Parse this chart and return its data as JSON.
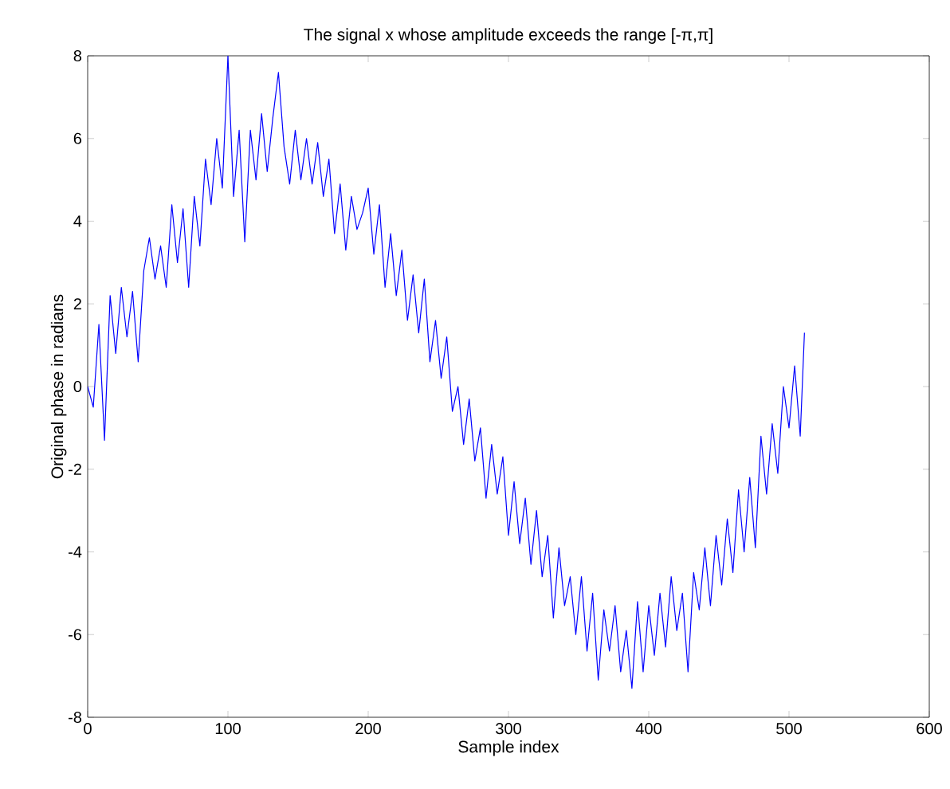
{
  "chart_data": {
    "type": "line",
    "title": "The signal x whose amplitude exceeds the range [-π,π]",
    "xlabel": "Sample index",
    "ylabel": "Original phase in radians",
    "xlim": [
      0,
      600
    ],
    "ylim": [
      -8,
      8
    ],
    "xticks": [
      0,
      100,
      200,
      300,
      400,
      500,
      600
    ],
    "yticks": [
      -8,
      -6,
      -4,
      -2,
      0,
      2,
      4,
      6,
      8
    ],
    "grid": false,
    "marker": "none",
    "line_style": "solid",
    "series": [
      {
        "color": "#0000ff",
        "x": [
          0,
          4,
          8,
          12,
          16,
          20,
          24,
          28,
          32,
          36,
          40,
          44,
          48,
          52,
          56,
          60,
          64,
          68,
          72,
          76,
          80,
          84,
          88,
          92,
          96,
          100,
          104,
          108,
          112,
          116,
          120,
          124,
          128,
          132,
          136,
          140,
          144,
          148,
          152,
          156,
          160,
          164,
          168,
          172,
          176,
          180,
          184,
          188,
          192,
          196,
          200,
          204,
          208,
          212,
          216,
          220,
          224,
          228,
          232,
          236,
          240,
          244,
          248,
          252,
          256,
          260,
          264,
          268,
          272,
          276,
          280,
          284,
          288,
          292,
          296,
          300,
          304,
          308,
          312,
          316,
          320,
          324,
          328,
          332,
          336,
          340,
          344,
          348,
          352,
          356,
          360,
          364,
          368,
          372,
          376,
          380,
          384,
          388,
          392,
          396,
          400,
          404,
          408,
          412,
          416,
          420,
          424,
          428,
          432,
          436,
          440,
          444,
          448,
          452,
          456,
          460,
          464,
          468,
          472,
          476,
          480,
          484,
          488,
          492,
          496,
          500,
          504,
          508,
          511
        ],
        "values": [
          0.0,
          -0.5,
          1.5,
          -1.3,
          2.2,
          0.8,
          2.4,
          1.2,
          2.3,
          0.6,
          2.8,
          3.6,
          2.6,
          3.4,
          2.4,
          4.4,
          3.0,
          4.3,
          2.4,
          4.6,
          3.4,
          5.5,
          4.4,
          6.0,
          4.8,
          8.0,
          4.6,
          6.2,
          3.5,
          6.2,
          5.0,
          6.6,
          5.2,
          6.5,
          7.6,
          5.8,
          4.9,
          6.2,
          5.0,
          6.0,
          4.9,
          5.9,
          4.6,
          5.5,
          3.7,
          4.9,
          3.3,
          4.6,
          3.8,
          4.2,
          4.8,
          3.2,
          4.4,
          2.4,
          3.7,
          2.2,
          3.3,
          1.6,
          2.7,
          1.3,
          2.6,
          0.6,
          1.6,
          0.2,
          1.2,
          -0.6,
          0.0,
          -1.4,
          -0.3,
          -1.8,
          -1.0,
          -2.7,
          -1.4,
          -2.6,
          -1.7,
          -3.6,
          -2.3,
          -3.8,
          -2.7,
          -4.3,
          -3.0,
          -4.6,
          -3.6,
          -5.6,
          -3.9,
          -5.3,
          -4.6,
          -6.0,
          -4.6,
          -6.4,
          -5.0,
          -7.1,
          -5.4,
          -6.4,
          -5.3,
          -6.9,
          -5.9,
          -7.3,
          -5.2,
          -6.9,
          -5.3,
          -6.5,
          -5.0,
          -6.3,
          -4.6,
          -5.9,
          -5.0,
          -6.9,
          -4.5,
          -5.4,
          -3.9,
          -5.3,
          -3.6,
          -4.8,
          -3.2,
          -4.5,
          -2.5,
          -4.0,
          -2.2,
          -3.9,
          -1.2,
          -2.6,
          -0.9,
          -2.1,
          0.0,
          -1.0,
          0.5,
          -1.2,
          1.3
        ]
      }
    ]
  }
}
